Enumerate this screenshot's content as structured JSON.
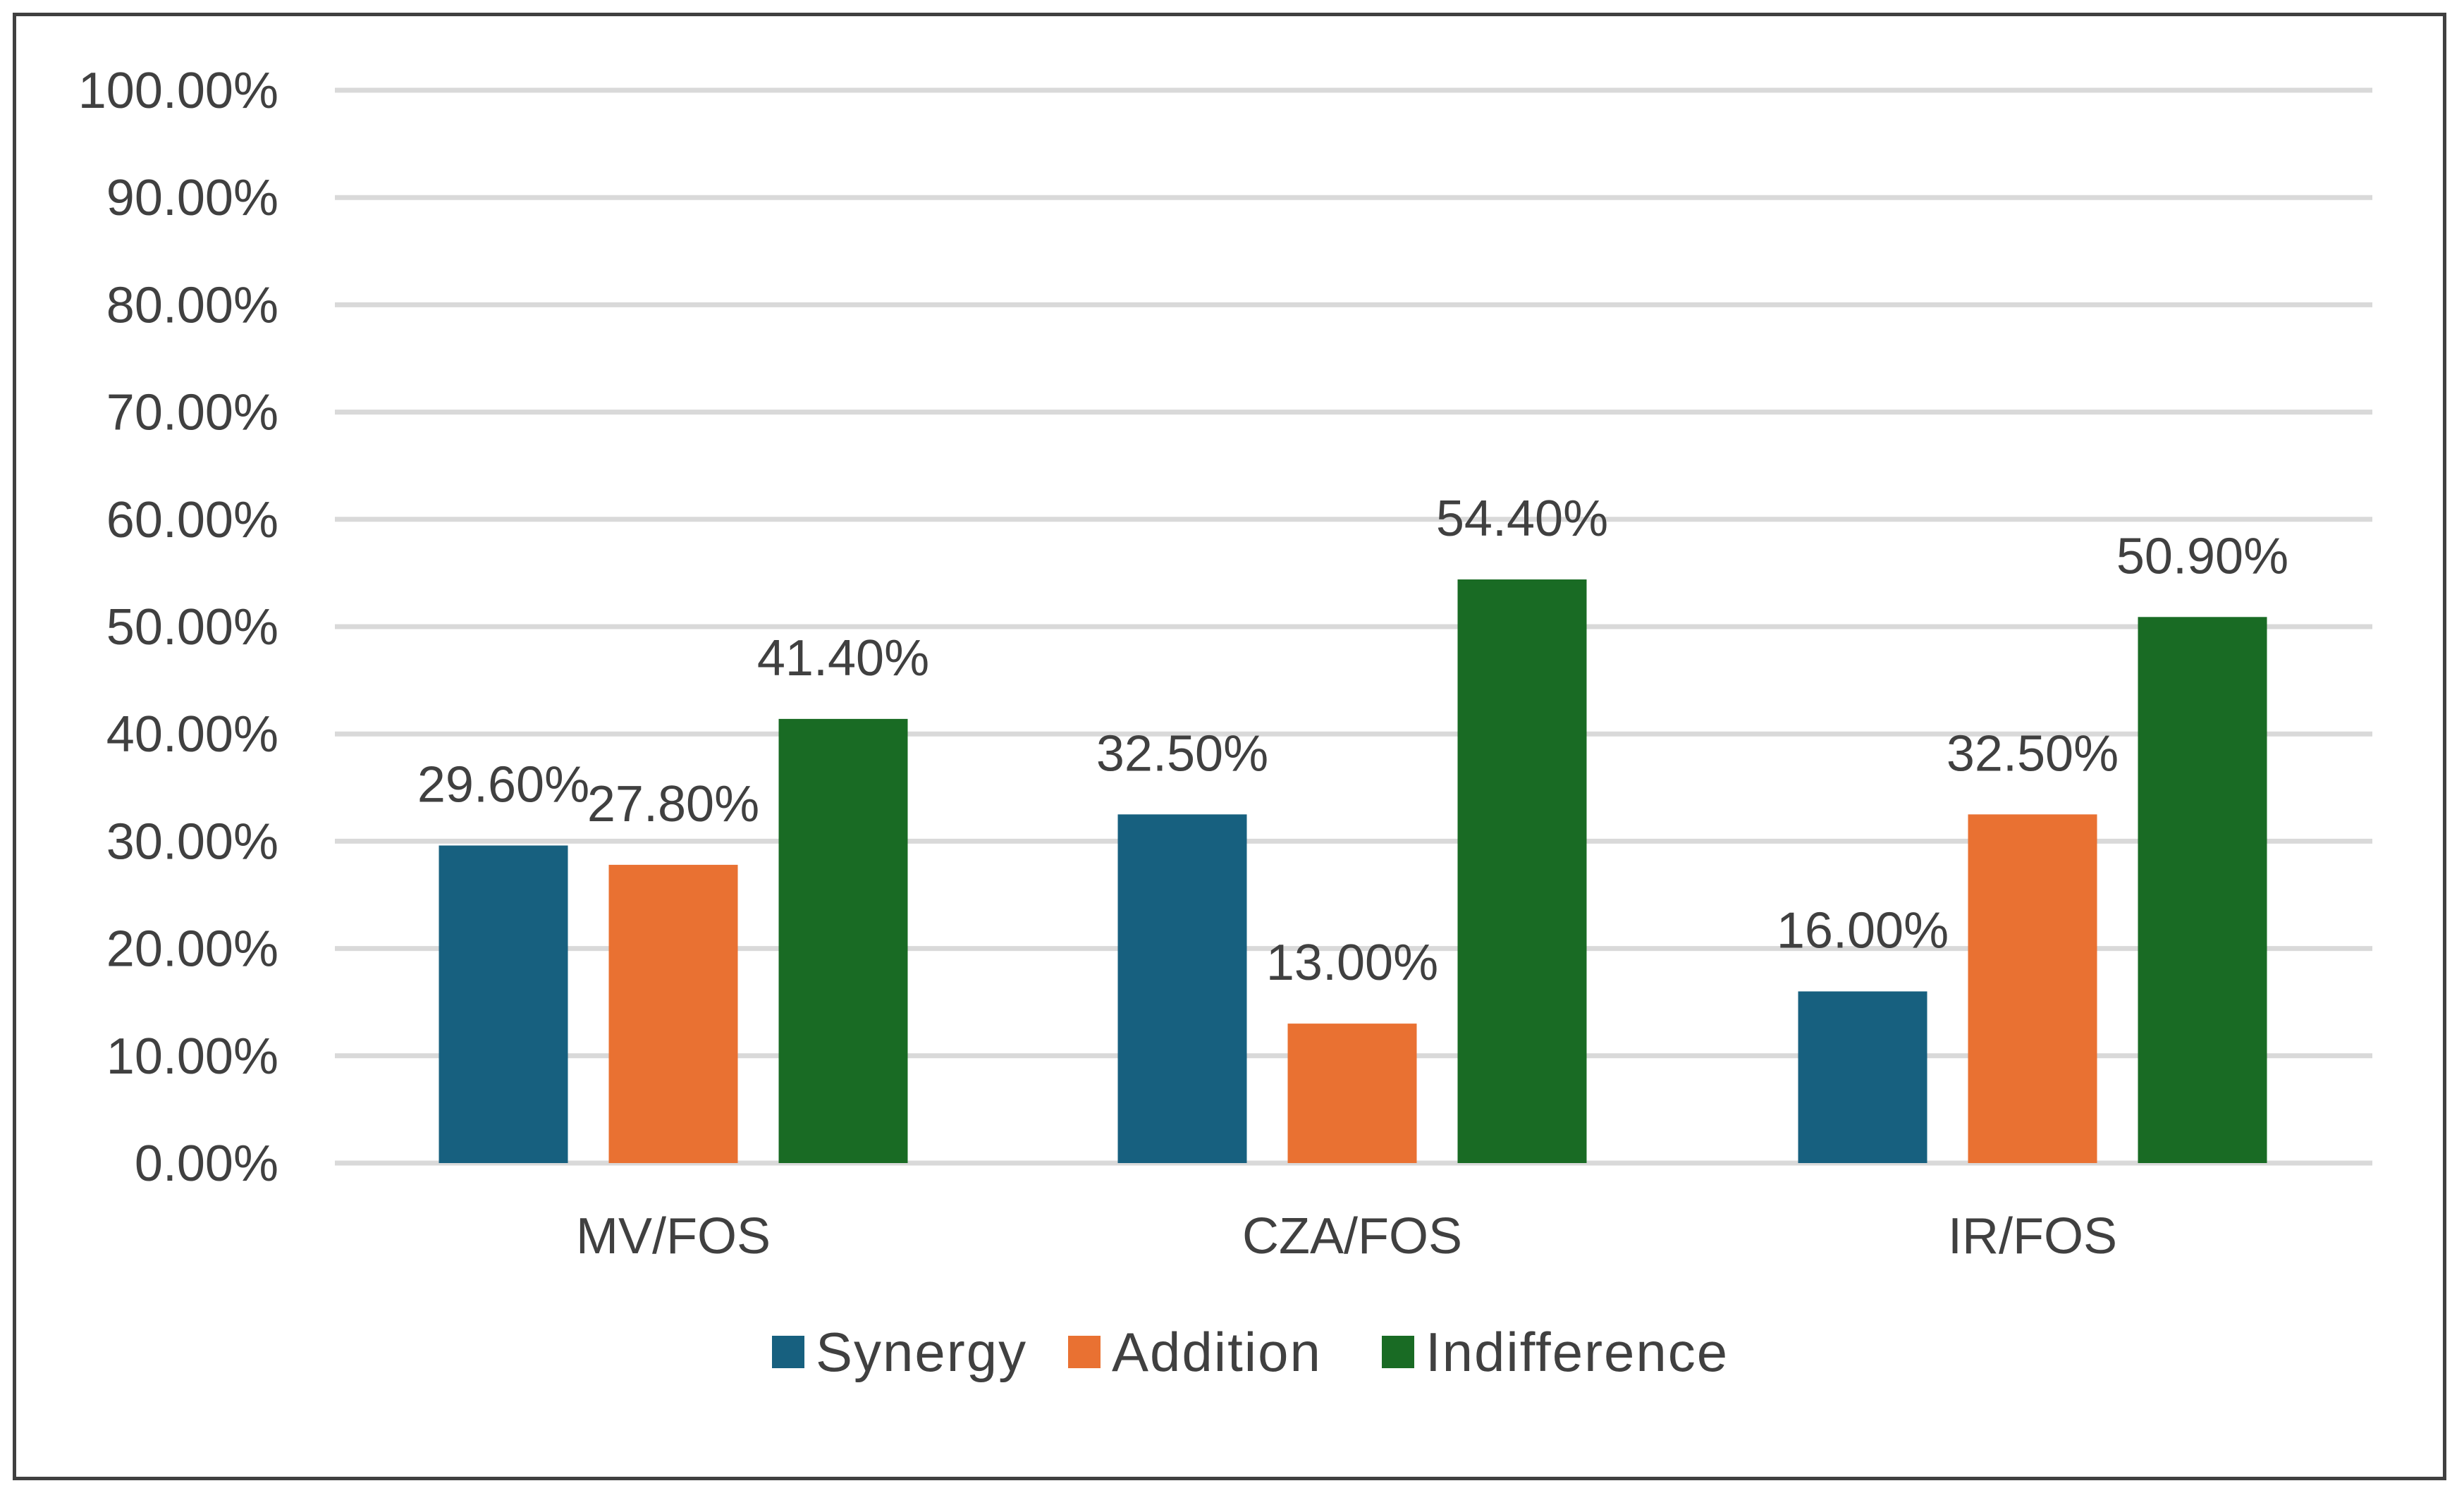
{
  "chart_data": {
    "type": "bar",
    "title": "",
    "xlabel": "",
    "ylabel": "",
    "ylim": [
      0,
      100
    ],
    "y_ticks": [
      "0.00%",
      "10.00%",
      "20.00%",
      "30.00%",
      "40.00%",
      "50.00%",
      "60.00%",
      "70.00%",
      "80.00%",
      "90.00%",
      "100.00%"
    ],
    "categories": [
      "MV/FOS",
      "CZA/FOS",
      "IR/FOS"
    ],
    "series": [
      {
        "name": "Synergy",
        "color": "#17607f",
        "values": [
          29.6,
          32.5,
          16.0
        ],
        "labels": [
          "29.60%",
          "32.50%",
          "16.00%"
        ]
      },
      {
        "name": "Addition",
        "color": "#e97132",
        "values": [
          27.8,
          13.0,
          32.5
        ],
        "labels": [
          "27.80%",
          "13.00%",
          "32.50%"
        ]
      },
      {
        "name": "Indifference",
        "color": "#196b24",
        "values": [
          41.4,
          54.4,
          50.9
        ],
        "labels": [
          "41.40%",
          "54.40%",
          "50.90%"
        ]
      }
    ],
    "legend_position": "bottom",
    "grid": true
  }
}
